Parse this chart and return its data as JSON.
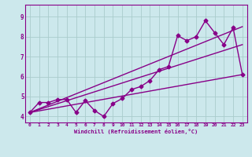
{
  "xlabel": "Windchill (Refroidissement éolien,°C)",
  "background_color": "#cce8ec",
  "line_color": "#880088",
  "grid_color": "#aacccc",
  "xlim": [
    -0.5,
    23.5
  ],
  "ylim": [
    3.7,
    9.6
  ],
  "xticks": [
    0,
    1,
    2,
    3,
    4,
    5,
    6,
    7,
    8,
    9,
    10,
    11,
    12,
    13,
    14,
    15,
    16,
    17,
    18,
    19,
    20,
    21,
    22,
    23
  ],
  "yticks": [
    4,
    5,
    6,
    7,
    8,
    9
  ],
  "line1_x": [
    0,
    1,
    2,
    3,
    4,
    5,
    6,
    7,
    8,
    9,
    10,
    11,
    12,
    13,
    14,
    15,
    16,
    17,
    18,
    19,
    20,
    21,
    22,
    23
  ],
  "line1_y": [
    4.2,
    4.7,
    4.7,
    4.85,
    4.85,
    4.2,
    4.8,
    4.3,
    4.0,
    4.65,
    4.9,
    5.35,
    5.5,
    5.8,
    6.35,
    6.5,
    8.05,
    7.8,
    8.0,
    8.8,
    8.2,
    7.6,
    8.45,
    6.1
  ],
  "line2_x": [
    0,
    23
  ],
  "line2_y": [
    4.2,
    6.1
  ],
  "line3_x": [
    0,
    23
  ],
  "line3_y": [
    4.2,
    7.6
  ],
  "line4_x": [
    0,
    23
  ],
  "line4_y": [
    4.2,
    8.5
  ],
  "marker": "D",
  "markersize": 2.5,
  "linewidth": 1.0
}
